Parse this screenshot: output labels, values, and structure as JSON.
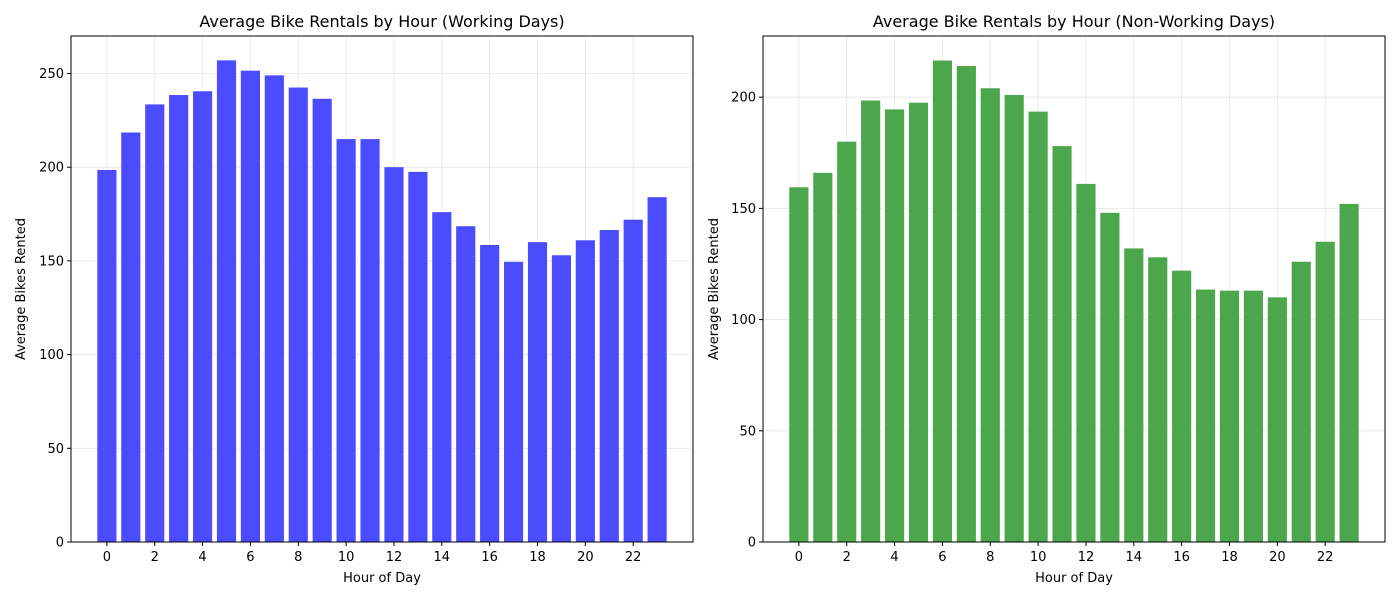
{
  "chart_data": [
    {
      "type": "bar",
      "title": "Average Bike Rentals by Hour (Working Days)",
      "xlabel": "Hour of Day",
      "ylabel": "Average Bikes Rented",
      "color": "#4b4bff",
      "x": [
        0,
        1,
        2,
        3,
        4,
        5,
        6,
        7,
        8,
        9,
        10,
        11,
        12,
        13,
        14,
        15,
        16,
        17,
        18,
        19,
        20,
        21,
        22,
        23
      ],
      "values": [
        198.5,
        218.5,
        233.5,
        238.5,
        240.5,
        257,
        251.5,
        249,
        242.5,
        236.5,
        215,
        215,
        200,
        197.5,
        176,
        168.5,
        158.5,
        149.5,
        160,
        153,
        161,
        166.5,
        172,
        184
      ],
      "xticks": [
        0,
        2,
        4,
        6,
        8,
        10,
        12,
        14,
        16,
        18,
        20,
        22
      ],
      "xtick_labels": [
        "0",
        "2",
        "4",
        "6",
        "8",
        "10",
        "12",
        "14",
        "16",
        "18",
        "20",
        "22"
      ],
      "yticks": [
        0,
        50,
        100,
        150,
        200,
        250
      ],
      "ytick_labels": [
        "0",
        "50",
        "100",
        "150",
        "200",
        "250"
      ],
      "xlim": [
        -1.5,
        24.5
      ],
      "ylim": [
        0,
        270
      ],
      "grid": true
    },
    {
      "type": "bar",
      "title": "Average Bike Rentals by Hour (Non-Working Days)",
      "xlabel": "Hour of Day",
      "ylabel": "Average Bikes Rented",
      "color": "#4ca64c",
      "x": [
        0,
        1,
        2,
        3,
        4,
        5,
        6,
        7,
        8,
        9,
        10,
        11,
        12,
        13,
        14,
        15,
        16,
        17,
        18,
        19,
        20,
        21,
        22,
        23
      ],
      "values": [
        159.5,
        166,
        180,
        198.5,
        194.5,
        197.5,
        216.5,
        214,
        204,
        201,
        193.5,
        178,
        161,
        148,
        132,
        128,
        122,
        113.5,
        113,
        113,
        110,
        126,
        135,
        152
      ],
      "xticks": [
        0,
        2,
        4,
        6,
        8,
        10,
        12,
        14,
        16,
        18,
        20,
        22
      ],
      "xtick_labels": [
        "0",
        "2",
        "4",
        "6",
        "8",
        "10",
        "12",
        "14",
        "16",
        "18",
        "20",
        "22"
      ],
      "yticks": [
        0,
        50,
        100,
        150,
        200
      ],
      "ytick_labels": [
        "0",
        "50",
        "100",
        "150",
        "200"
      ],
      "xlim": [
        -1.5,
        24.5
      ],
      "ylim": [
        0,
        227.5
      ],
      "grid": true
    }
  ]
}
